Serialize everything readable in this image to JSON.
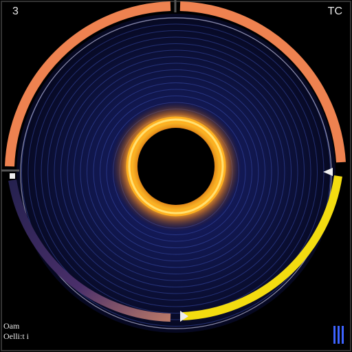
{
  "hud": {
    "top_left": "3",
    "top_right": "TC",
    "bottom_left_line1": "Oam",
    "bottom_left_line2": "Oelli:t i"
  },
  "ring_meter": {
    "orange_arc_fraction": 0.5,
    "yellow_arc_fraction": 0.25,
    "purple_arc_fraction": 0.25
  },
  "colors": {
    "background": "#000000",
    "frame": "#3a3a3a",
    "orange": "#ee8250",
    "yellow": "#f3dc10",
    "purple_start": "#2a2858",
    "purple_end": "#c07a6a",
    "disc_center": "#1a2060",
    "disc_edge": "#070a24",
    "ring_glow": "#ffb020",
    "level_bars": "#3d63ff"
  },
  "icons": {
    "marker_left": "triangle-marker-icon",
    "marker_right": "triangle-marker-icon",
    "marker_bottom": "triangle-marker-icon",
    "level": "level-bars-icon"
  }
}
